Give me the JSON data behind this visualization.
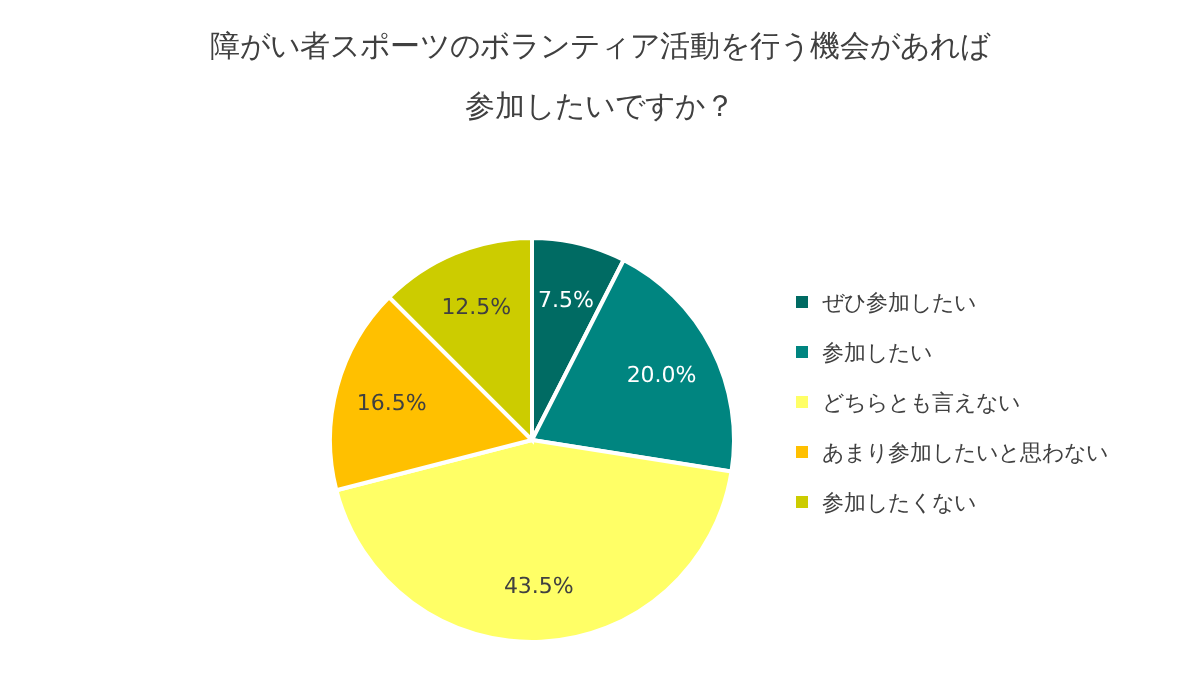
{
  "chart_data": {
    "type": "pie",
    "title": "障がい者スポーツのボランティア活動を行う機会があれば参加したいですか？",
    "categories": [
      "ぜひ参加したい",
      "参加したい",
      "どちらとも言えない",
      "あまり参加したいと思わない",
      "参加したくない"
    ],
    "values": [
      7.5,
      20.0,
      43.5,
      16.5,
      12.5
    ],
    "value_labels": [
      "7.5%",
      "20.0%",
      "43.5%",
      "16.5%",
      "12.5%"
    ],
    "colors": [
      "#006b63",
      "#008580",
      "#ffff66",
      "#ffc000",
      "#cccc00"
    ],
    "legend": "right"
  }
}
